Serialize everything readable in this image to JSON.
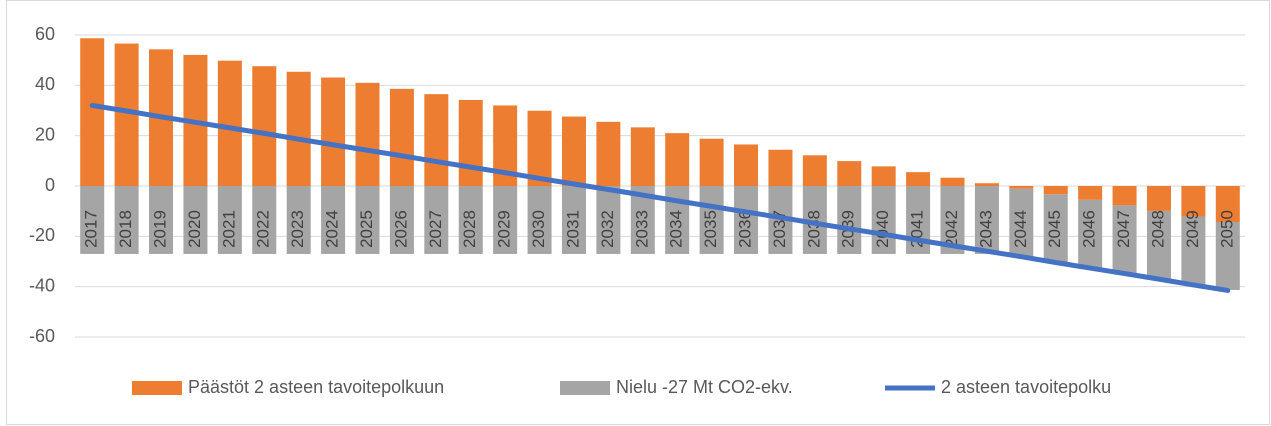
{
  "chart_data": {
    "type": "bar",
    "stacked": true,
    "categories": [
      "2017",
      "2018",
      "2019",
      "2020",
      "2021",
      "2022",
      "2023",
      "2024",
      "2025",
      "2026",
      "2027",
      "2028",
      "2029",
      "2030",
      "2031",
      "2032",
      "2033",
      "2034",
      "2035",
      "2036",
      "2037",
      "2038",
      "2039",
      "2040",
      "2041",
      "2042",
      "2043",
      "2044",
      "2045",
      "2046",
      "2047",
      "2048",
      "2049",
      "2050"
    ],
    "series": [
      {
        "name": "Päästöt 2 asteen tavoitepolkuun",
        "color": "#ed7d31",
        "type": "bar",
        "values": [
          58.7,
          56.6,
          54.3,
          52.1,
          49.8,
          47.6,
          45.4,
          43.1,
          41.0,
          38.6,
          36.5,
          34.2,
          32.0,
          29.9,
          27.6,
          25.5,
          23.3,
          21.0,
          18.8,
          16.5,
          14.4,
          12.2,
          9.9,
          7.8,
          5.5,
          3.3,
          1.1,
          -1.1,
          -3.3,
          -5.5,
          -7.7,
          -9.9,
          -12.1,
          -14.3
        ]
      },
      {
        "name": "Nielu -27 Mt CO2-ekv.",
        "color": "#a5a5a5",
        "type": "bar",
        "values": [
          -27,
          -27,
          -27,
          -27,
          -27,
          -27,
          -27,
          -27,
          -27,
          -27,
          -27,
          -27,
          -27,
          -27,
          -27,
          -27,
          -27,
          -27,
          -27,
          -27,
          -27,
          -27,
          -27,
          -27,
          -27,
          -27,
          -27,
          -27,
          -27,
          -27,
          -27,
          -27,
          -27,
          -27
        ]
      },
      {
        "name": "2 asteen tavoitepolku",
        "color": "#4472c4",
        "type": "line",
        "values": [
          32.0,
          29.8,
          27.5,
          25.3,
          23.1,
          20.9,
          18.6,
          16.4,
          14.2,
          12.0,
          9.7,
          7.5,
          5.3,
          3.0,
          0.8,
          -1.4,
          -3.6,
          -5.9,
          -8.1,
          -10.3,
          -12.5,
          -14.8,
          -17.0,
          -19.2,
          -21.5,
          -23.7,
          -25.9,
          -28.1,
          -30.4,
          -32.6,
          -34.8,
          -37.0,
          -39.3,
          -41.5
        ]
      }
    ],
    "ylim": [
      -60,
      60
    ],
    "yticks": [
      -60,
      -40,
      -20,
      0,
      20,
      40,
      60
    ],
    "grid": true,
    "legend": "bottom"
  }
}
